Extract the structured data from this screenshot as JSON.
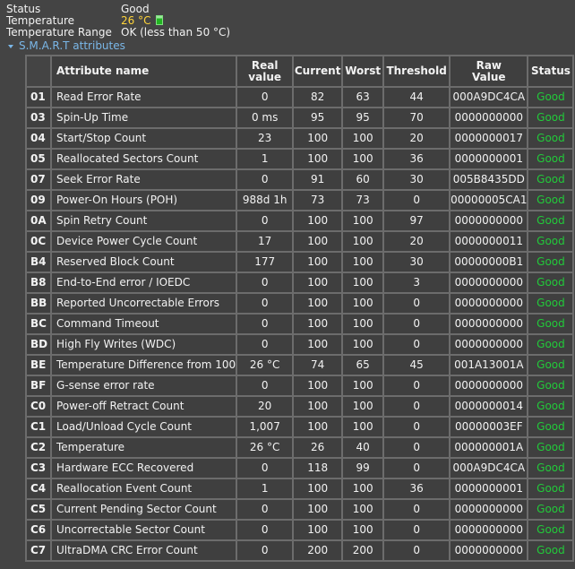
{
  "info": {
    "status_label": "Status",
    "status_value": "Good",
    "temperature_label": "Temperature",
    "temperature_value": "26 °C",
    "temperature_range_label": "Temperature Range",
    "temperature_range_value": "OK (less than 50 °C)"
  },
  "section": {
    "title": "S.M.A.R.T attributes",
    "expanded": true
  },
  "colors": {
    "background": "#444444",
    "temperature": "#ffd43a",
    "status_good": "#22c93a",
    "section_link": "#7ab7e8"
  },
  "table": {
    "headers": {
      "name": "Attribute name",
      "real_value_line1": "Real",
      "real_value_line2": "value",
      "current": "Current",
      "worst": "Worst",
      "threshold": "Threshold",
      "raw_value_line1": "Raw",
      "raw_value_line2": "Value",
      "status": "Status"
    },
    "rows": [
      {
        "id": "01",
        "name": "Read Error Rate",
        "real": "0",
        "current": "82",
        "worst": "63",
        "threshold": "44",
        "raw": "000A9DC4CA",
        "status": "Good"
      },
      {
        "id": "03",
        "name": "Spin-Up Time",
        "real": "0 ms",
        "current": "95",
        "worst": "95",
        "threshold": "70",
        "raw": "0000000000",
        "status": "Good"
      },
      {
        "id": "04",
        "name": "Start/Stop Count",
        "real": "23",
        "current": "100",
        "worst": "100",
        "threshold": "20",
        "raw": "0000000017",
        "status": "Good"
      },
      {
        "id": "05",
        "name": "Reallocated Sectors Count",
        "real": "1",
        "current": "100",
        "worst": "100",
        "threshold": "36",
        "raw": "0000000001",
        "status": "Good"
      },
      {
        "id": "07",
        "name": "Seek Error Rate",
        "real": "0",
        "current": "91",
        "worst": "60",
        "threshold": "30",
        "raw": "005B8435DD",
        "status": "Good"
      },
      {
        "id": "09",
        "name": "Power-On Hours (POH)",
        "real": "988d 1h",
        "current": "73",
        "worst": "73",
        "threshold": "0",
        "raw": "00000005CA1",
        "status": "Good"
      },
      {
        "id": "0A",
        "name": "Spin Retry Count",
        "real": "0",
        "current": "100",
        "worst": "100",
        "threshold": "97",
        "raw": "0000000000",
        "status": "Good"
      },
      {
        "id": "0C",
        "name": "Device Power Cycle Count",
        "real": "17",
        "current": "100",
        "worst": "100",
        "threshold": "20",
        "raw": "0000000011",
        "status": "Good"
      },
      {
        "id": "B4",
        "name": "Reserved Block Count",
        "real": "177",
        "current": "100",
        "worst": "100",
        "threshold": "30",
        "raw": "00000000B1",
        "status": "Good"
      },
      {
        "id": "B8",
        "name": "End-to-End error / IOEDC",
        "real": "0",
        "current": "100",
        "worst": "100",
        "threshold": "3",
        "raw": "0000000000",
        "status": "Good"
      },
      {
        "id": "BB",
        "name": "Reported Uncorrectable Errors",
        "real": "0",
        "current": "100",
        "worst": "100",
        "threshold": "0",
        "raw": "0000000000",
        "status": "Good"
      },
      {
        "id": "BC",
        "name": "Command Timeout",
        "real": "0",
        "current": "100",
        "worst": "100",
        "threshold": "0",
        "raw": "0000000000",
        "status": "Good"
      },
      {
        "id": "BD",
        "name": "High Fly Writes (WDC)",
        "real": "0",
        "current": "100",
        "worst": "100",
        "threshold": "0",
        "raw": "0000000000",
        "status": "Good"
      },
      {
        "id": "BE",
        "name": "Temperature Difference from 100",
        "real": "26 °C",
        "current": "74",
        "worst": "65",
        "threshold": "45",
        "raw": "001A13001A",
        "status": "Good"
      },
      {
        "id": "BF",
        "name": "G-sense error rate",
        "real": "0",
        "current": "100",
        "worst": "100",
        "threshold": "0",
        "raw": "0000000000",
        "status": "Good"
      },
      {
        "id": "C0",
        "name": "Power-off Retract Count",
        "real": "20",
        "current": "100",
        "worst": "100",
        "threshold": "0",
        "raw": "0000000014",
        "status": "Good"
      },
      {
        "id": "C1",
        "name": "Load/Unload Cycle Count",
        "real": "1,007",
        "current": "100",
        "worst": "100",
        "threshold": "0",
        "raw": "00000003EF",
        "status": "Good"
      },
      {
        "id": "C2",
        "name": "Temperature",
        "real": "26 °C",
        "current": "26",
        "worst": "40",
        "threshold": "0",
        "raw": "000000001A",
        "status": "Good"
      },
      {
        "id": "C3",
        "name": "Hardware ECC Recovered",
        "real": "0",
        "current": "118",
        "worst": "99",
        "threshold": "0",
        "raw": "000A9DC4CA",
        "status": "Good"
      },
      {
        "id": "C4",
        "name": "Reallocation Event Count",
        "real": "1",
        "current": "100",
        "worst": "100",
        "threshold": "36",
        "raw": "0000000001",
        "status": "Good"
      },
      {
        "id": "C5",
        "name": "Current Pending Sector Count",
        "real": "0",
        "current": "100",
        "worst": "100",
        "threshold": "0",
        "raw": "0000000000",
        "status": "Good"
      },
      {
        "id": "C6",
        "name": "Uncorrectable Sector Count",
        "real": "0",
        "current": "100",
        "worst": "100",
        "threshold": "0",
        "raw": "0000000000",
        "status": "Good"
      },
      {
        "id": "C7",
        "name": "UltraDMA CRC Error Count",
        "real": "0",
        "current": "200",
        "worst": "200",
        "threshold": "0",
        "raw": "0000000000",
        "status": "Good"
      }
    ]
  }
}
